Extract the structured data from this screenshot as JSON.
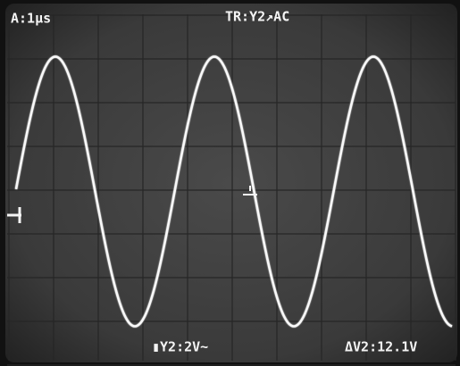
{
  "screen": {
    "timebase": "A:1µs",
    "trigger": "TR:Y2↗AC",
    "channel_scale": "▮Y2:2V~",
    "cursor_readout": "ΔV2:12.1V"
  }
}
